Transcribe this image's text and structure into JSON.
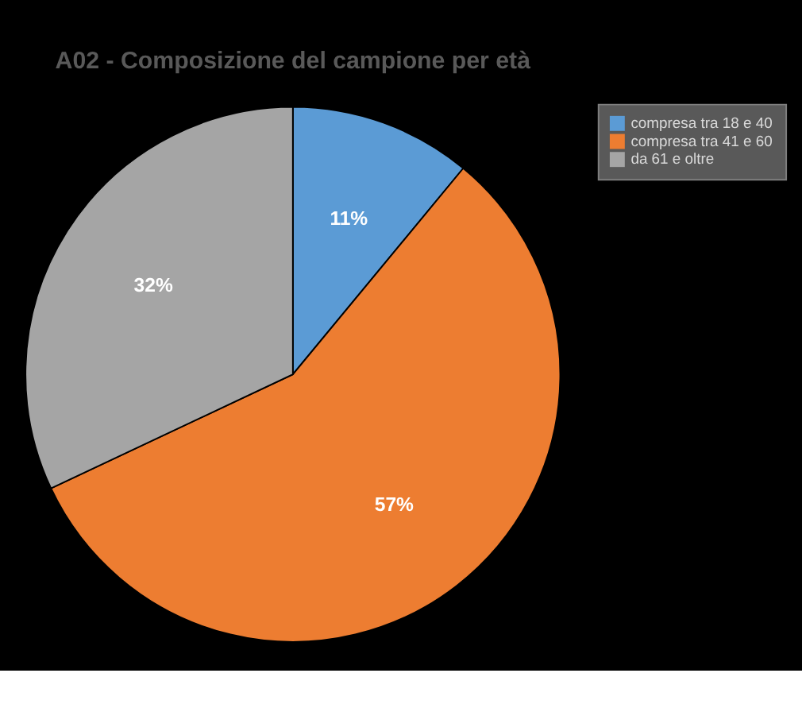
{
  "chart_data": {
    "type": "pie",
    "title": "A02 - Composizione del campione per età",
    "categories": [
      "compresa tra 18 e 40",
      "compresa tra 41 e 60",
      "da 61 e oltre"
    ],
    "values": [
      11,
      57,
      32
    ],
    "colors": [
      "#5b9bd5",
      "#ed7d31",
      "#a5a5a5"
    ],
    "value_labels": [
      "11%",
      "57%",
      "32%"
    ],
    "legend": "right"
  }
}
